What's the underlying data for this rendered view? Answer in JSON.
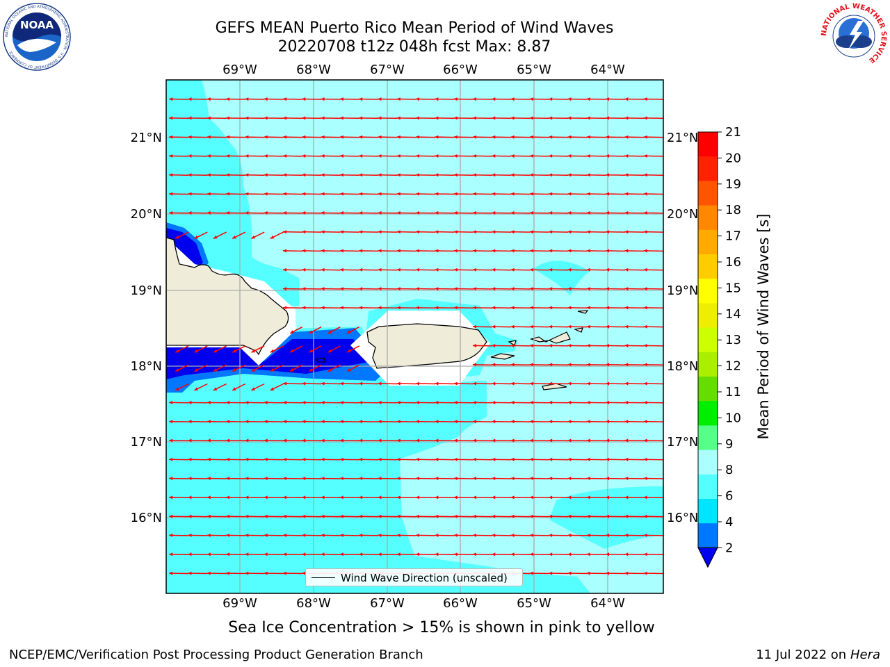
{
  "title_line1": "GEFS MEAN Puerto Rico Mean Period of Wind Waves",
  "title_line2": "20220708 t12z 048h fcst   Max: 8.87",
  "subcaption": "Sea Ice Concentration > 15% is shown in pink to yellow",
  "footer_left": "NCEP/EMC/Verification Post Processing Product Generation Branch",
  "footer_right_date": "11 Jul 2022 on ",
  "footer_right_machine": "Hera",
  "legend_label": "Wind Wave Direction (unscaled)",
  "lon_labels": [
    "69°W",
    "68°W",
    "67°W",
    "66°W",
    "65°W",
    "64°W"
  ],
  "lat_labels": [
    "21°N",
    "20°N",
    "19°N",
    "18°N",
    "17°N",
    "16°N"
  ],
  "colorbar": {
    "title": "Mean Period of Wind Waves [s]",
    "ticks": [
      "21",
      "20",
      "19",
      "18",
      "17",
      "16",
      "15",
      "14",
      "13",
      "12",
      "11",
      "10",
      "9",
      "8",
      "6",
      "4",
      "2"
    ],
    "colors": [
      "#0000ee",
      "#0077ff",
      "#00e5ff",
      "#55ffff",
      "#aaffff",
      "#55ff88",
      "#00ee00",
      "#66dd00",
      "#aaee00",
      "#ccff00",
      "#eeee00",
      "#ffff00",
      "#ffcc00",
      "#ffaa00",
      "#ff8800",
      "#ff5500",
      "#ff2200",
      "#ff0000"
    ]
  },
  "field_colors": {
    "land": "#efecd9",
    "period_2_4": "#0000ee",
    "period_4_6": "#0077ff",
    "period_6_8": "#55ffff",
    "period_8_9": "#aaffff",
    "arrow": "#ff0000"
  },
  "logos": {
    "noaa_text": "NOAA",
    "noaa_ring": "NATIONAL OCEANIC AND ATMOSPHERIC ADMINISTRATION · U.S. DEPARTMENT OF COMMERCE",
    "nws_ring": "NATIONAL WEATHER SERVICE"
  }
}
